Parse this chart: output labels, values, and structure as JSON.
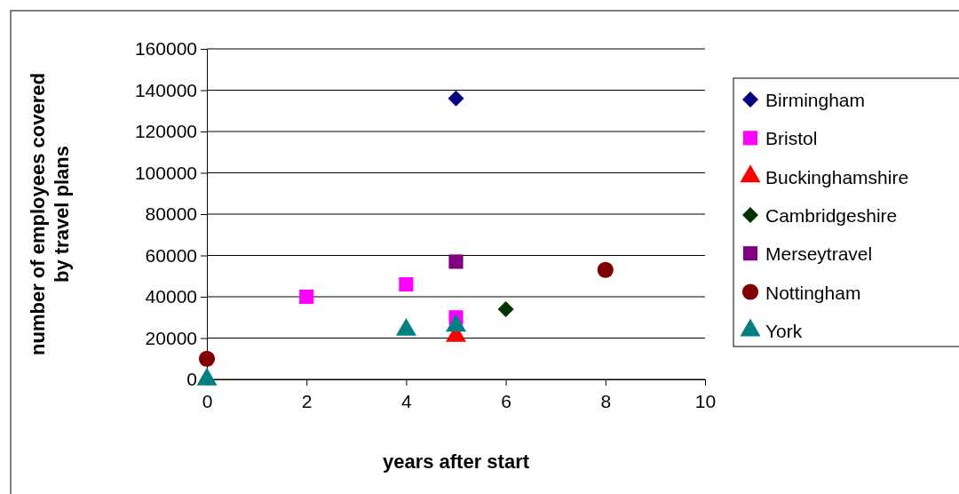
{
  "chart_data": {
    "type": "scatter",
    "xlabel": "years after start",
    "ylabel": "number of employees covered by travel plans",
    "xlim": [
      0,
      10
    ],
    "xticks": [
      0,
      2,
      4,
      6,
      8,
      10
    ],
    "ylim": [
      0,
      160000
    ],
    "yticks": [
      0,
      20000,
      40000,
      60000,
      80000,
      100000,
      120000,
      140000,
      160000
    ],
    "grid": "y",
    "legend": "right",
    "series": [
      {
        "name": "Birmingham",
        "color": "#000080",
        "marker": "diamond",
        "x": [
          5
        ],
        "values": [
          136000
        ]
      },
      {
        "name": "Bristol",
        "color": "#ff00ff",
        "marker": "square",
        "x": [
          2,
          4,
          5
        ],
        "values": [
          40000,
          46000,
          30000
        ]
      },
      {
        "name": "Buckinghamshire",
        "color": "#ff0000",
        "marker": "triangle",
        "x": [
          5
        ],
        "values": [
          21000
        ]
      },
      {
        "name": "Cambridgeshire",
        "color": "#003300",
        "marker": "diamond",
        "x": [
          6
        ],
        "values": [
          34000
        ]
      },
      {
        "name": "Merseytravel",
        "color": "#800080",
        "marker": "square",
        "x": [
          5
        ],
        "values": [
          57000
        ]
      },
      {
        "name": "Nottingham",
        "color": "#800000",
        "marker": "circle",
        "x": [
          0,
          8
        ],
        "values": [
          10000,
          53000
        ]
      },
      {
        "name": "York",
        "color": "#008080",
        "marker": "triangle",
        "x": [
          0,
          4,
          5
        ],
        "values": [
          0,
          24000,
          26000
        ]
      }
    ]
  }
}
